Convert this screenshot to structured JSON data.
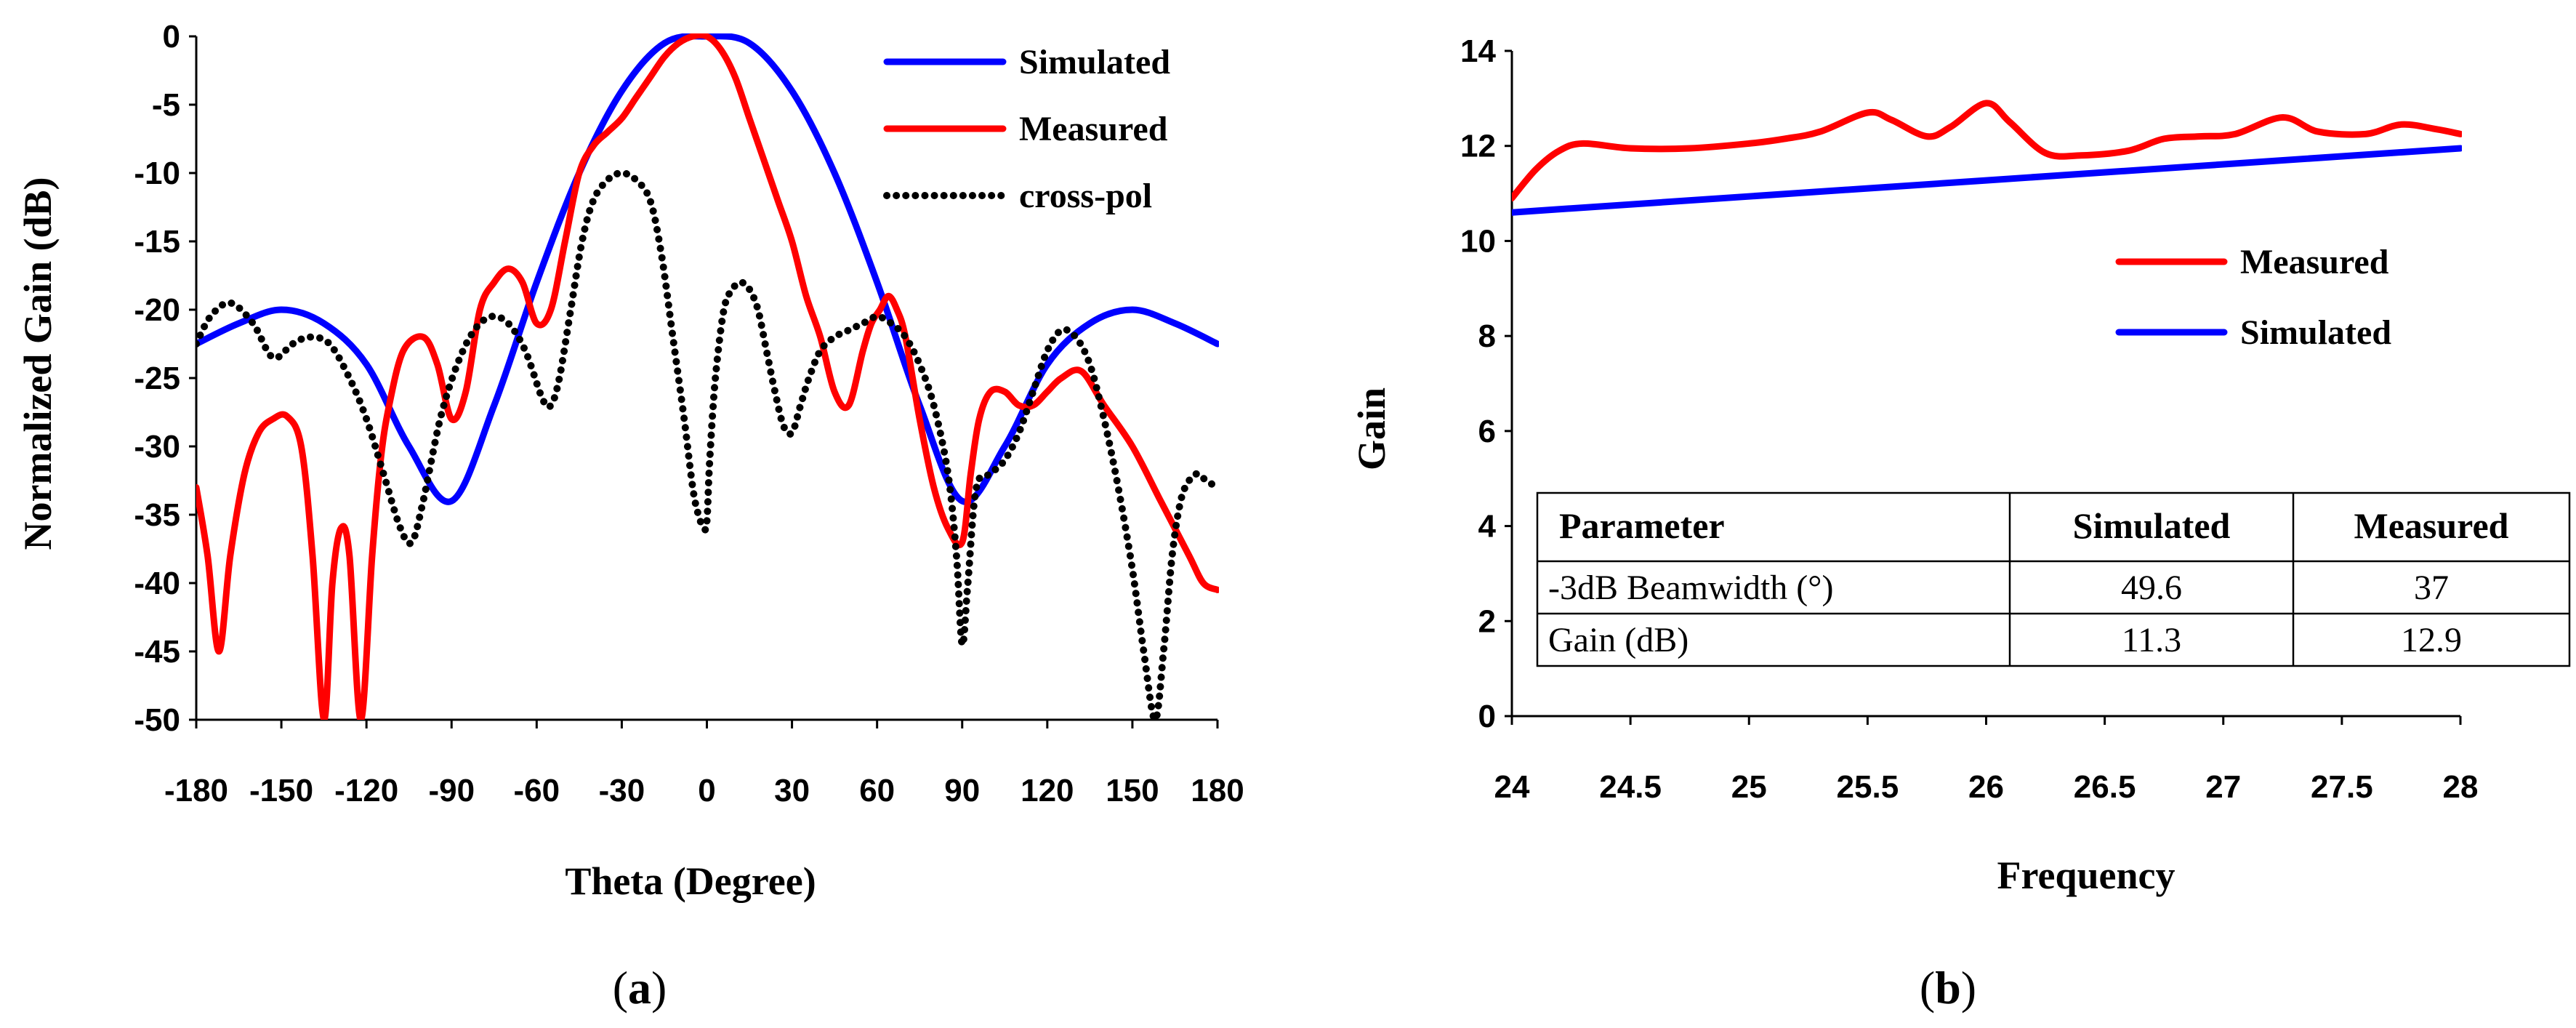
{
  "chart_data": [
    {
      "panel_label": "a",
      "type": "line",
      "title": "",
      "xlabel": "Theta (Degree)",
      "ylabel": "Normalized Gain (dB)",
      "xlim": [
        -180,
        180
      ],
      "ylim": [
        -50,
        0
      ],
      "xticks": [
        -180,
        -150,
        -120,
        -90,
        -60,
        -30,
        0,
        30,
        60,
        90,
        120,
        150,
        180
      ],
      "yticks": [
        0,
        -5,
        -10,
        -15,
        -20,
        -25,
        -30,
        -35,
        -40,
        -45,
        -50
      ],
      "legend_position": "top-right",
      "series": [
        {
          "name": "Simulated",
          "color": "#0000ff",
          "style": "solid",
          "x": [
            -180,
            -165,
            -150,
            -135,
            -120,
            -105,
            -90,
            -75,
            -60,
            -45,
            -30,
            -15,
            0,
            15,
            30,
            45,
            60,
            75,
            90,
            105,
            120,
            135,
            150,
            165,
            180
          ],
          "y": [
            -22.5,
            -21,
            -20,
            -21,
            -24,
            -30,
            -34,
            -27,
            -18,
            -10,
            -4,
            -0.5,
            0,
            -0.5,
            -4,
            -10,
            -18,
            -27,
            -34,
            -30,
            -24,
            -21,
            -20,
            -21,
            -22.5
          ]
        },
        {
          "name": "Measured",
          "color": "#ff0000",
          "style": "solid",
          "x": [
            -180,
            -176,
            -172,
            -168,
            -163,
            -158,
            -153,
            -148,
            -143,
            -139,
            -135,
            -132,
            -129,
            -126,
            -122,
            -118,
            -115,
            -112,
            -107,
            -100,
            -95,
            -90,
            -85,
            -80,
            -75,
            -70,
            -65,
            -60,
            -55,
            -50,
            -45,
            -40,
            -35,
            -30,
            -25,
            -20,
            -15,
            -10,
            -5,
            0,
            5,
            10,
            15,
            20,
            25,
            30,
            35,
            40,
            45,
            50,
            55,
            58,
            61,
            64,
            67,
            70,
            75,
            80,
            85,
            90,
            93,
            96,
            100,
            105,
            110,
            115,
            120,
            125,
            132,
            140,
            150,
            160,
            170,
            175,
            180
          ],
          "y": [
            -33,
            -38,
            -45,
            -38,
            -32,
            -29,
            -28,
            -27.8,
            -30,
            -38,
            -50,
            -40,
            -36,
            -38,
            -50,
            -38,
            -31,
            -27,
            -23,
            -22,
            -24,
            -28,
            -26,
            -20,
            -18,
            -17,
            -18,
            -21,
            -20,
            -15,
            -10,
            -8,
            -7,
            -6,
            -4.5,
            -3,
            -1.5,
            -0.5,
            0,
            0,
            -1,
            -3,
            -6,
            -9,
            -12,
            -15,
            -19,
            -22,
            -26,
            -27,
            -23,
            -21,
            -20,
            -19,
            -20,
            -22,
            -28,
            -33,
            -36,
            -37,
            -32,
            -28,
            -26,
            -26,
            -27,
            -27,
            -26,
            -25,
            -24.5,
            -27,
            -30,
            -34,
            -38,
            -40,
            -40.5
          ]
        },
        {
          "name": "cross-pol",
          "color": "#000000",
          "style": "dotted",
          "x": [
            -180,
            -175,
            -168,
            -160,
            -153,
            -146,
            -140,
            -133,
            -126,
            -120,
            -114,
            -108,
            -104,
            -100,
            -94,
            -88,
            -82,
            -76,
            -70,
            -64,
            -58,
            -55,
            -52,
            -48,
            -44,
            -40,
            -35,
            -30,
            -25,
            -20,
            -16,
            -12,
            -8,
            -5,
            -3,
            -1,
            0,
            1,
            3,
            6,
            9,
            12,
            15,
            18,
            21,
            24,
            27,
            30,
            33,
            36,
            40,
            45,
            50,
            55,
            60,
            65,
            70,
            75,
            80,
            85,
            88,
            90,
            92,
            95,
            100,
            105,
            110,
            115,
            120,
            125,
            130,
            135,
            140,
            145,
            150,
            154,
            158,
            161,
            164,
            167,
            170,
            173,
            176,
            180
          ],
          "y": [
            -22.5,
            -20.5,
            -19.5,
            -21,
            -23.5,
            -22.5,
            -22,
            -22.5,
            -25,
            -28,
            -32,
            -36,
            -37,
            -34,
            -28,
            -24,
            -21.5,
            -20.5,
            -21,
            -23,
            -26.5,
            -27,
            -25,
            -20,
            -15,
            -12,
            -10.5,
            -10,
            -10.5,
            -12,
            -16,
            -22,
            -28,
            -33,
            -35,
            -36,
            -35.5,
            -31,
            -25,
            -20,
            -18.5,
            -18,
            -18.5,
            -20,
            -23,
            -26,
            -28.5,
            -29,
            -27,
            -25,
            -23,
            -22,
            -21.5,
            -21,
            -20.5,
            -21,
            -22,
            -24,
            -27,
            -32,
            -38,
            -44.5,
            -40,
            -33,
            -32,
            -31,
            -29,
            -26,
            -23,
            -21.5,
            -22,
            -24,
            -28,
            -33,
            -39,
            -45,
            -50,
            -45,
            -38,
            -34,
            -32.5,
            -32,
            -32.5,
            -33
          ]
        }
      ]
    },
    {
      "panel_label": "b",
      "type": "line",
      "title": "",
      "xlabel": "Frequency",
      "ylabel": "Gain",
      "xlim": [
        24,
        28
      ],
      "ylim": [
        0,
        14
      ],
      "xticks": [
        24,
        24.5,
        25,
        25.5,
        26,
        26.5,
        27,
        27.5,
        28
      ],
      "yticks": [
        0,
        2,
        4,
        6,
        8,
        10,
        12,
        14
      ],
      "legend_position": "right",
      "series": [
        {
          "name": "Measured",
          "color": "#ff0000",
          "style": "solid",
          "x": [
            24,
            24.1,
            24.2,
            24.3,
            24.5,
            24.75,
            25,
            25.15,
            25.3,
            25.5,
            25.6,
            25.75,
            25.85,
            26,
            26.1,
            26.25,
            26.4,
            26.6,
            26.75,
            26.9,
            27.05,
            27.25,
            27.4,
            27.6,
            27.75,
            27.9,
            28
          ],
          "y": [
            10.9,
            11.5,
            11.9,
            12.05,
            11.95,
            11.95,
            12.05,
            12.15,
            12.3,
            12.7,
            12.55,
            12.2,
            12.4,
            12.9,
            12.5,
            11.85,
            11.8,
            11.9,
            12.15,
            12.2,
            12.25,
            12.6,
            12.3,
            12.25,
            12.45,
            12.35,
            12.25
          ]
        },
        {
          "name": "Simulated",
          "color": "#0000ff",
          "style": "solid",
          "x": [
            24,
            28
          ],
          "y": [
            10.6,
            11.95
          ]
        }
      ],
      "table": {
        "headers": [
          "Parameter",
          "Simulated",
          "Measured"
        ],
        "rows": [
          [
            "-3dB Beamwidth (°)",
            "49.6",
            "37"
          ],
          [
            "Gain (dB)",
            "11.3",
            "12.9"
          ]
        ]
      }
    }
  ]
}
